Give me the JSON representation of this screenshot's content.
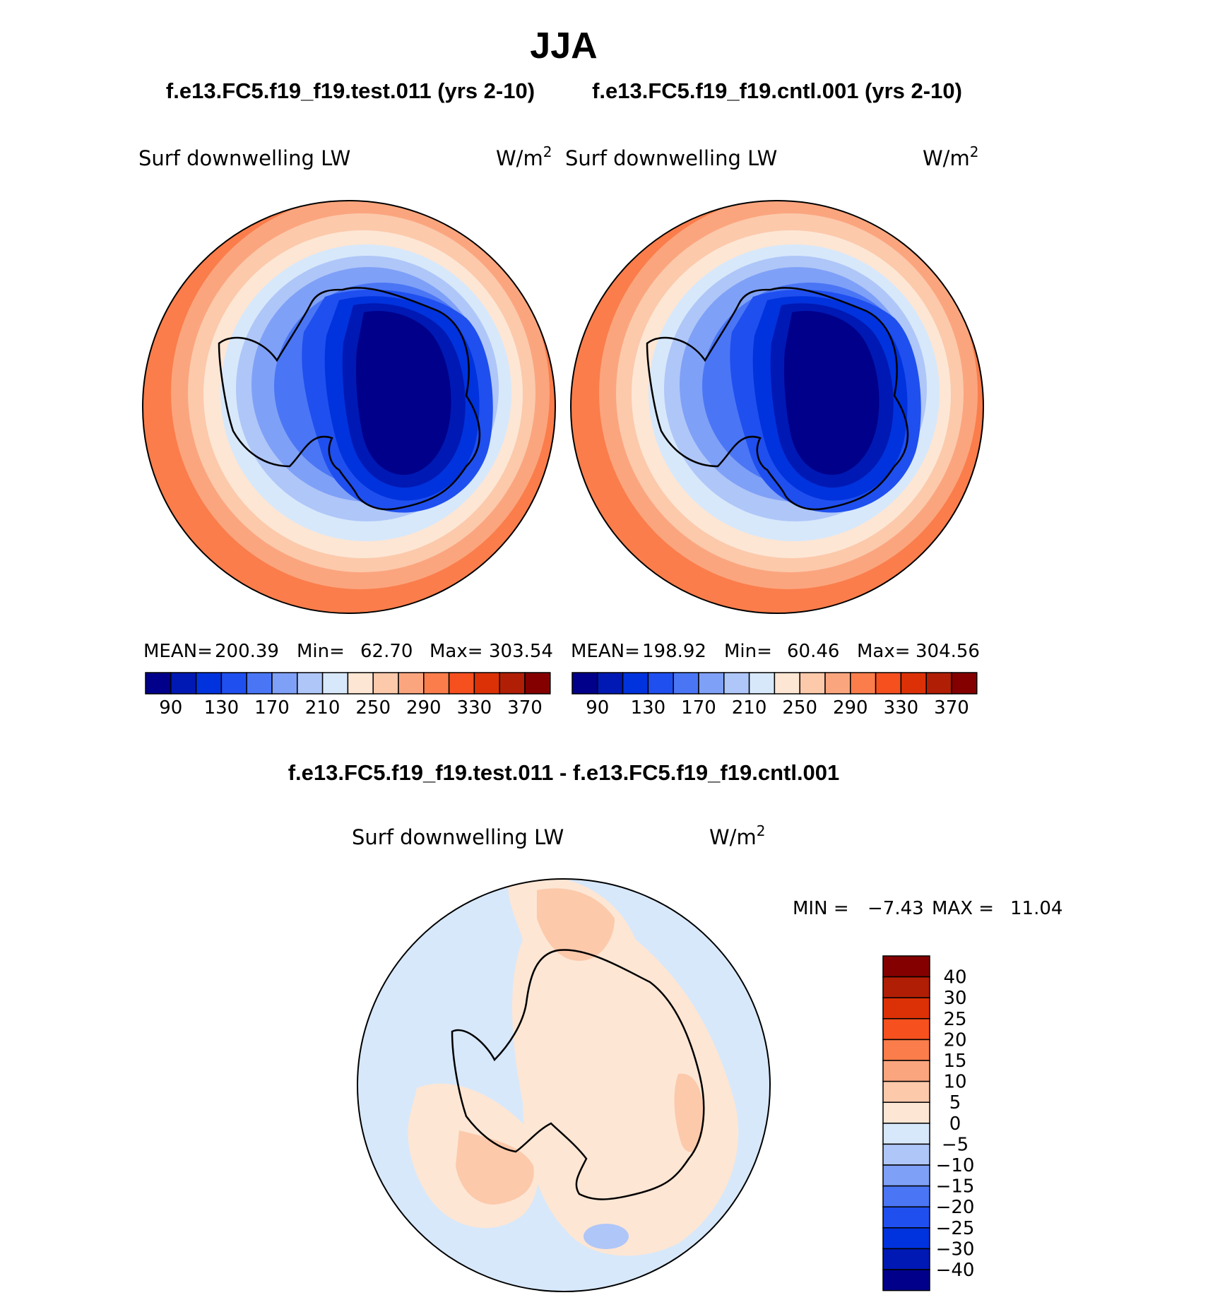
{
  "main_title": "JJA",
  "panels": {
    "test_case": "f.e13.FC5.f19_f19.test.011 (yrs 2-10)",
    "cntl_case": "f.e13.FC5.f19_f19.cntl.001 (yrs 2-10)",
    "diff_case": "f.e13.FC5.f19_f19.test.011 - f.e13.FC5.f19_f19.cntl.001"
  },
  "variable": {
    "left_label": "Surf downwelling LW",
    "units": "W/m",
    "units_sup": "2"
  },
  "stats": {
    "test": {
      "mean_label": "MEAN=",
      "mean": "200.39",
      "min_label": "Min=",
      "min": "62.70",
      "max_label": "Max=",
      "max": "303.54"
    },
    "cntl": {
      "mean_label": "MEAN=",
      "mean": "198.92",
      "min_label": "Min=",
      "min": "60.46",
      "max_label": "Max=",
      "max": "304.56"
    },
    "diff": {
      "min_label": "MIN =",
      "min": "−7.43",
      "max_label": "MAX =",
      "max": "11.04"
    }
  },
  "chart_data": [
    {
      "type": "heatmap",
      "projection": "south polar stereographic",
      "title": "f.e13.FC5.f19_f19.test.011 (yrs 2-10)",
      "variable": "Surf downwelling LW",
      "units": "W/m2",
      "stats": {
        "mean": 200.39,
        "min": 62.7,
        "max": 303.54
      },
      "contour_levels": [
        90,
        110,
        130,
        150,
        170,
        190,
        210,
        230,
        250,
        270,
        290,
        310,
        330,
        350,
        370
      ],
      "colorbar_tick_labels": [
        "90",
        "130",
        "170",
        "210",
        "250",
        "290",
        "330",
        "370"
      ],
      "colors": [
        "#00008a",
        "#0019b4",
        "#0033dd",
        "#1f4fef",
        "#4a76f5",
        "#7fa0f7",
        "#afc6f8",
        "#d7e8fb",
        "#fde6d4",
        "#fcc9ab",
        "#fba57e",
        "#fa7d4b",
        "#f5501e",
        "#dc3106",
        "#b01e06",
        "#840000"
      ]
    },
    {
      "type": "heatmap",
      "projection": "south polar stereographic",
      "title": "f.e13.FC5.f19_f19.cntl.001 (yrs 2-10)",
      "variable": "Surf downwelling LW",
      "units": "W/m2",
      "stats": {
        "mean": 198.92,
        "min": 60.46,
        "max": 304.56
      },
      "contour_levels": [
        90,
        110,
        130,
        150,
        170,
        190,
        210,
        230,
        250,
        270,
        290,
        310,
        330,
        350,
        370
      ],
      "colorbar_tick_labels": [
        "90",
        "130",
        "170",
        "210",
        "250",
        "290",
        "330",
        "370"
      ],
      "colors": [
        "#00008a",
        "#0019b4",
        "#0033dd",
        "#1f4fef",
        "#4a76f5",
        "#7fa0f7",
        "#afc6f8",
        "#d7e8fb",
        "#fde6d4",
        "#fcc9ab",
        "#fba57e",
        "#fa7d4b",
        "#f5501e",
        "#dc3106",
        "#b01e06",
        "#840000"
      ]
    },
    {
      "type": "heatmap",
      "projection": "south polar stereographic",
      "title": "f.e13.FC5.f19_f19.test.011 - f.e13.FC5.f19_f19.cntl.001",
      "variable": "Surf downwelling LW",
      "units": "W/m2",
      "stats": {
        "min": -7.43,
        "max": 11.04
      },
      "contour_levels": [
        -40,
        -30,
        -25,
        -20,
        -15,
        -10,
        -5,
        0,
        5,
        10,
        15,
        20,
        25,
        30,
        40
      ],
      "colorbar_tick_labels": [
        "40",
        "30",
        "25",
        "20",
        "15",
        "10",
        "5",
        "0",
        "−5",
        "−10",
        "−15",
        "−20",
        "−25",
        "−30",
        "−40"
      ],
      "colors": [
        "#00008a",
        "#0019b4",
        "#0033dd",
        "#1f4fef",
        "#4a76f5",
        "#7fa0f7",
        "#afc6f8",
        "#d7e8fb",
        "#fde6d4",
        "#fcc9ab",
        "#fba57e",
        "#fa7d4b",
        "#f5501e",
        "#dc3106",
        "#b01e06",
        "#840000"
      ]
    }
  ]
}
